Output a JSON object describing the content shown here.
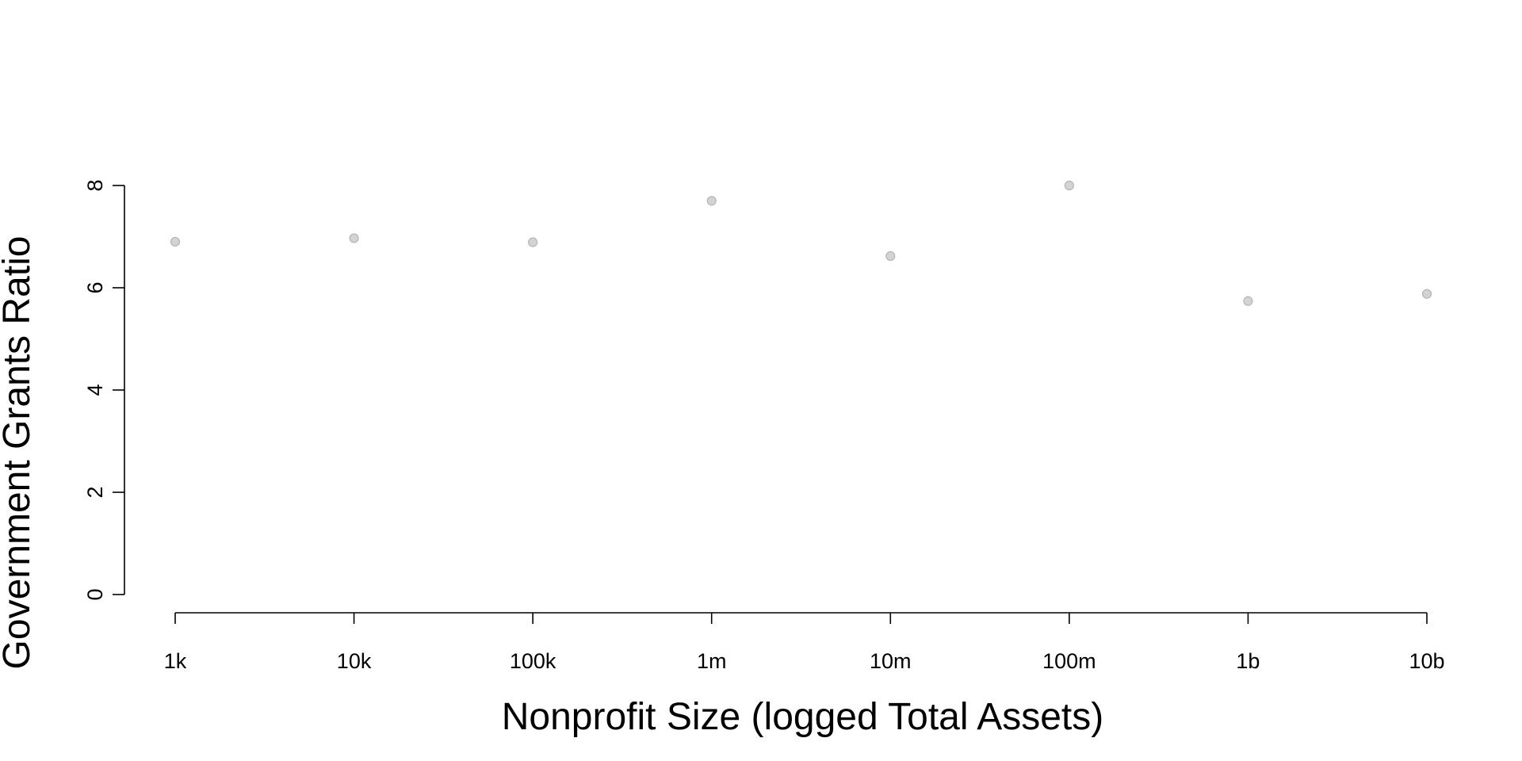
{
  "chart_data": {
    "type": "scatter",
    "title": "",
    "xlabel": "Nonprofit Size (logged Total Assets)",
    "ylabel": "Government Grants Ratio",
    "x_scale": "log",
    "x": [
      1000,
      10000,
      100000,
      1000000,
      10000000,
      100000000,
      1000000000,
      10000000000
    ],
    "x_tick_values": [
      1000,
      10000,
      100000,
      1000000,
      10000000,
      100000000,
      1000000000,
      10000000000
    ],
    "x_tick_labels": [
      "1k",
      "10k",
      "100k",
      "1m",
      "10m",
      "100m",
      "1b",
      "10b"
    ],
    "y": [
      6.9,
      6.97,
      6.89,
      7.7,
      6.62,
      8.0,
      5.74,
      5.88
    ],
    "y_ticks": [
      0,
      2,
      4,
      6,
      8
    ],
    "ylim": [
      0,
      8
    ],
    "grid": false,
    "point_color": "#d3d3d3",
    "point_edge_color": "#b5b5b5"
  }
}
